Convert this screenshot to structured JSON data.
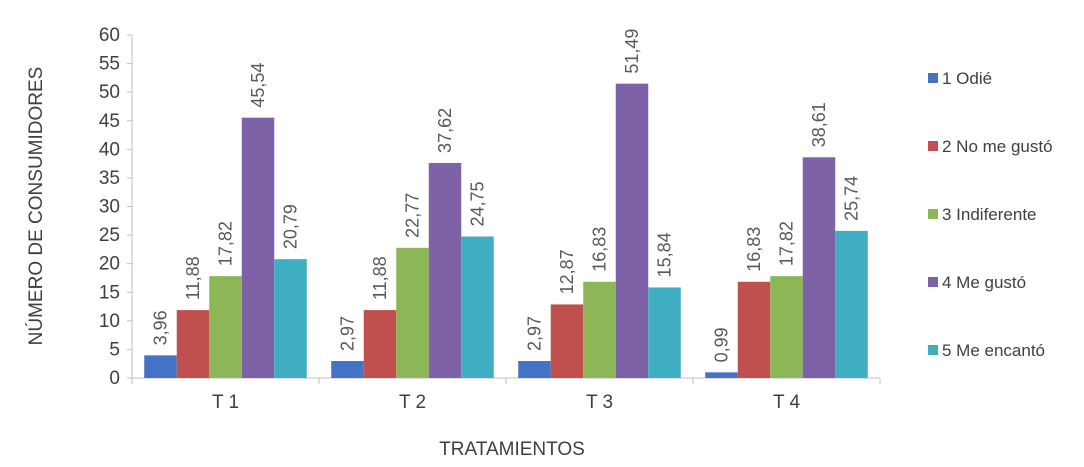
{
  "chart_data": {
    "type": "bar",
    "xlabel": "TRATAMIENTOS",
    "ylabel": "NÚMERO DE CONSUMIDORES",
    "ylim": [
      0,
      60
    ],
    "yticks": [
      "0",
      "5",
      "10",
      "15",
      "20",
      "25",
      "30",
      "35",
      "40",
      "45",
      "50",
      "55",
      "60"
    ],
    "categories": [
      "T 1",
      "T 2",
      "T 3",
      "T 4"
    ],
    "legend_position": "right",
    "grid": false,
    "series": [
      {
        "name": "1 Odié",
        "color": "#4472C4",
        "values": [
          3.96,
          2.97,
          2.97,
          0.99
        ],
        "labels": [
          "3,96",
          "2,97",
          "2,97",
          "0,99"
        ]
      },
      {
        "name": "2 No me gustó",
        "color": "#C0504D",
        "values": [
          11.88,
          11.88,
          12.87,
          16.83
        ],
        "labels": [
          "11,88",
          "11,88",
          "12,87",
          "16,83"
        ]
      },
      {
        "name": "3 Indiferente",
        "color": "#8DB657",
        "values": [
          17.82,
          22.77,
          16.83,
          17.82
        ],
        "labels": [
          "17,82",
          "22,77",
          "16,83",
          "17,82"
        ]
      },
      {
        "name": "4 Me gustó",
        "color": "#7E62A8",
        "values": [
          45.54,
          37.62,
          51.49,
          38.61
        ],
        "labels": [
          "45,54",
          "37,62",
          "51,49",
          "38,61"
        ]
      },
      {
        "name": "5 Me encantó",
        "color": "#3FAEC3",
        "values": [
          20.79,
          24.75,
          15.84,
          25.74
        ],
        "labels": [
          "20,79",
          "24,75",
          "15,84",
          "25,74"
        ]
      }
    ]
  }
}
